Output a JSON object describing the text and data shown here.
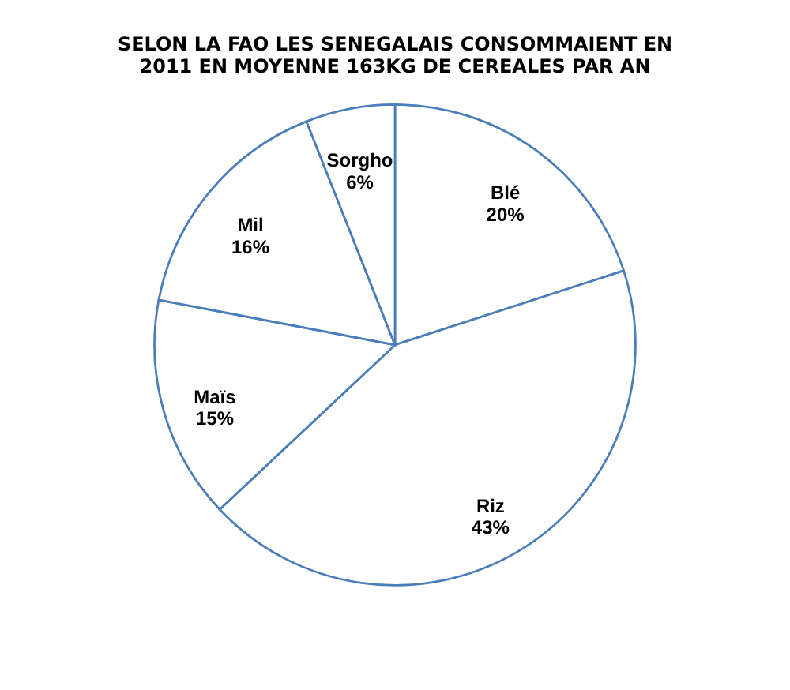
{
  "chart_data": {
    "type": "pie",
    "title": [
      "SELON LA FAO LES SENEGALAIS CONSOMMAIENT EN",
      "2011 EN MOYENNE 163KG DE CEREALES PAR AN"
    ],
    "categories": [
      "Blé",
      "Riz",
      "Maïs",
      "Mil",
      "Sorgho"
    ],
    "values": [
      20,
      43,
      15,
      16,
      6
    ],
    "colors": [
      "#ffffff",
      "#ffffff",
      "#ffffff",
      "#ffffff",
      "#ffffff"
    ],
    "value_labels": [
      "20%",
      "43%",
      "15%",
      "16%",
      "6%"
    ],
    "legend": false
  }
}
